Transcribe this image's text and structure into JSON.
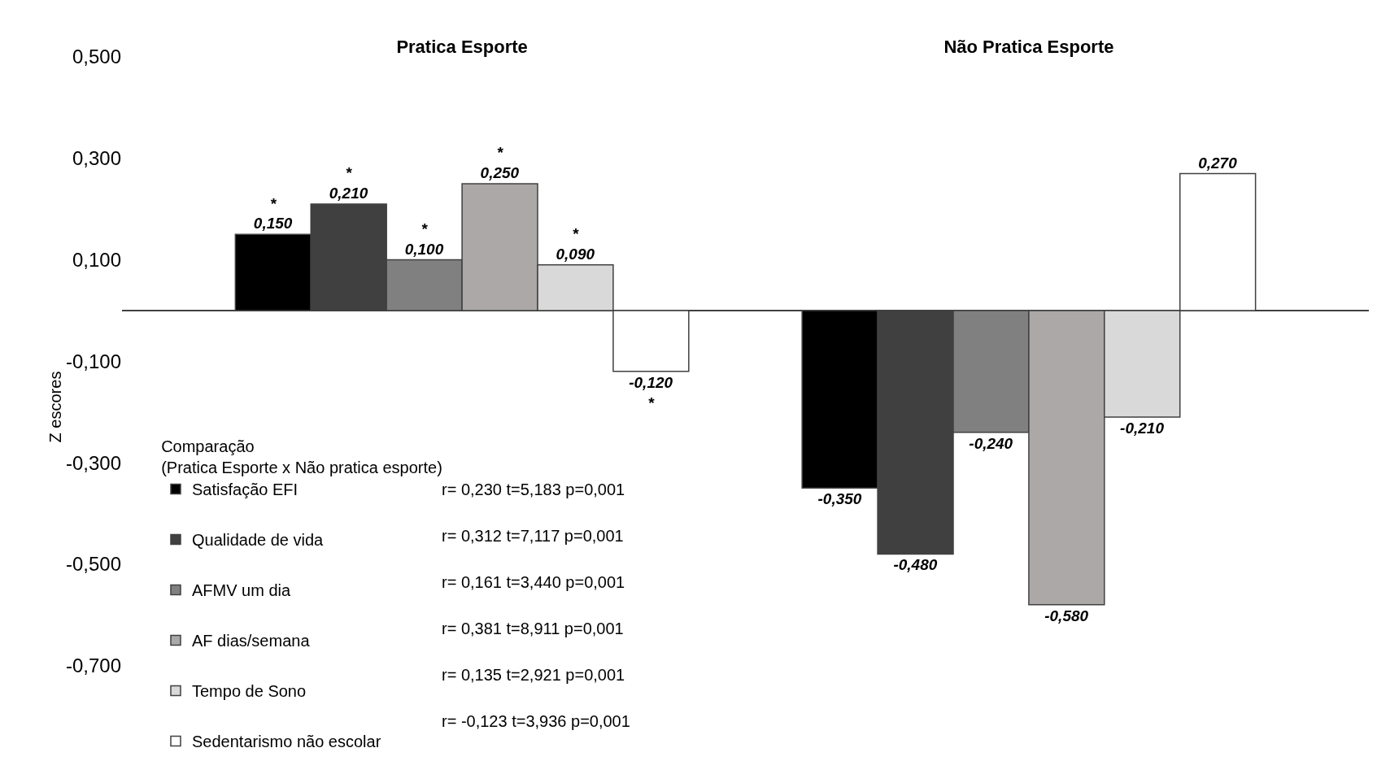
{
  "chart_data": {
    "type": "bar",
    "categories": [
      "Pratica Esporte",
      "Não Pratica Esporte"
    ],
    "ylabel": "Z escores",
    "legend_title": "Comparação\n(Pratica Esporte x Não pratica esporte)",
    "series": [
      {
        "name": "Satisfação EFI",
        "color": "#000000",
        "values": [
          0.15,
          -0.35
        ],
        "value_labels": [
          "*\n0,150",
          "-0,350"
        ]
      },
      {
        "name": "Qualidade de vida",
        "color": "#404040",
        "values": [
          0.21,
          -0.48
        ],
        "value_labels": [
          "*\n0,210",
          "-0,480"
        ]
      },
      {
        "name": "AFMV um dia",
        "color": "#808080",
        "values": [
          0.1,
          -0.24
        ],
        "value_labels": [
          "*\n0,100",
          "-0,240"
        ]
      },
      {
        "name": "AF dias/semana",
        "color": "#aca8a8",
        "values": [
          0.25,
          -0.58
        ],
        "value_labels": [
          "*\n0,250",
          "-0,580"
        ]
      },
      {
        "name": "Tempo de Sono",
        "color": "#d9d9d9",
        "values": [
          0.09,
          -0.21
        ],
        "value_labels": [
          "*\n0,090",
          "-0,210"
        ]
      },
      {
        "name": "Sedentarismo não escolar",
        "color": "#ffffff",
        "values": [
          -0.12,
          0.27
        ],
        "value_labels": [
          "-0,120\n*",
          "0,270"
        ]
      }
    ],
    "annotations": [
      "r= 0,230 t=5,183 p=0,001",
      "r= 0,312 t=7,117 p=0,001",
      "r= 0,161 t=3,440 p=0,001",
      "r= 0,381 t=8,911 p=0,001",
      "r= 0,135 t=2,921 p=0,001",
      "r= -0,123 t=3,936 p=0,001"
    ],
    "ylim": [
      -0.88,
      0.5
    ],
    "yticks": [
      {
        "value": 0.5,
        "label": "0,500"
      },
      {
        "value": 0.3,
        "label": "0,300"
      },
      {
        "value": 0.1,
        "label": "0,100"
      },
      {
        "value": -0.1,
        "label": "-0,100"
      },
      {
        "value": -0.3,
        "label": "-0,300"
      },
      {
        "value": -0.5,
        "label": "-0,500"
      },
      {
        "value": -0.7,
        "label": "-0,700"
      }
    ],
    "grid": false,
    "legend": "bottom left"
  }
}
